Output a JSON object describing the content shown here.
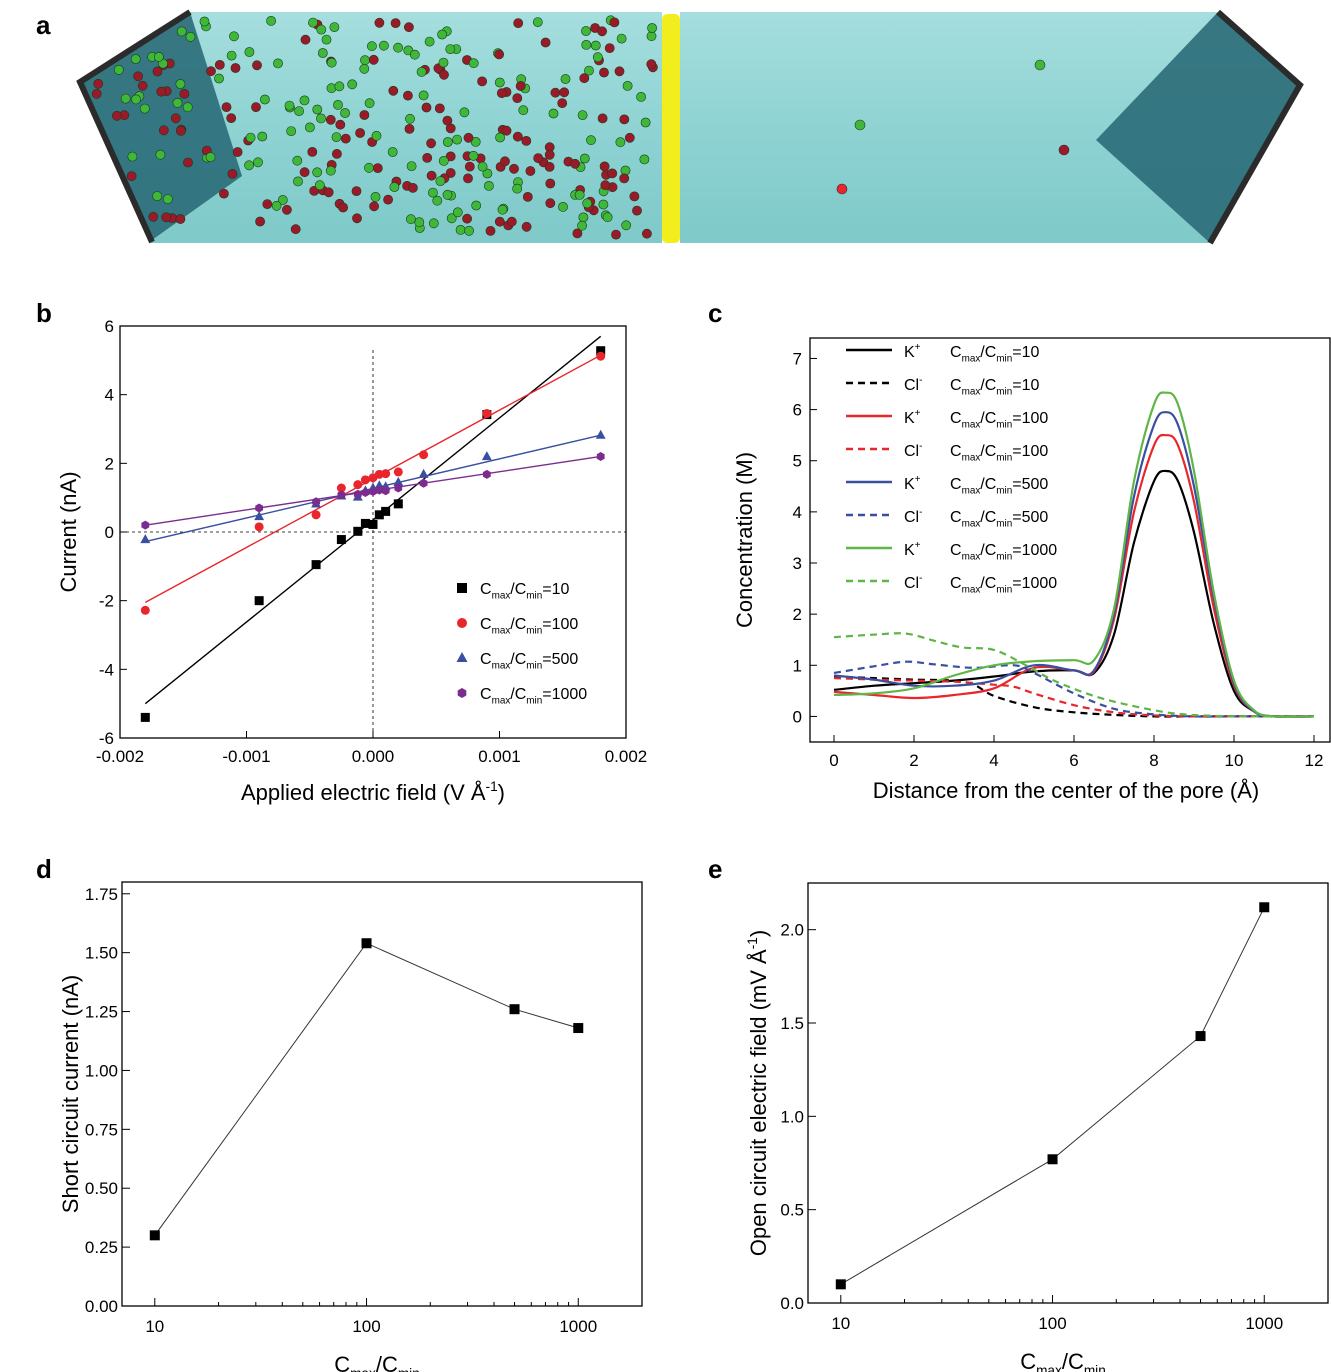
{
  "panels": {
    "a": {
      "label": "a"
    },
    "b": {
      "label": "b"
    },
    "c": {
      "label": "c"
    },
    "d": {
      "label": "d"
    },
    "e": {
      "label": "e"
    }
  },
  "colors": {
    "water": "#8fd3d3",
    "water_dark": "#2a6c78",
    "membrane": "#f2ee1d",
    "k_ion": "#3fb83a",
    "cl_ion": "#9b1a2a",
    "black": "#000000",
    "red": "#e8262b",
    "blue": "#3b4fa0",
    "purple": "#7b2c8e",
    "green": "#5fb546"
  },
  "chart_data": [
    {
      "panel": "b",
      "type": "scatter",
      "xlabel": "Applied electric field (V Å-1)",
      "ylabel": "Current (nA)",
      "xlim": [
        -0.002,
        0.002
      ],
      "ylim": [
        -6,
        6
      ],
      "xticks": [
        "-0.002",
        "-0.001",
        "0.000",
        "0.001",
        "0.002"
      ],
      "yticks": [
        "-6",
        "-4",
        "-2",
        "0",
        "2",
        "4",
        "6"
      ],
      "legend_position": "bottom-right",
      "series": [
        {
          "name": "Cmax/Cmin=10",
          "color": "#000000",
          "marker": "square",
          "x": [
            -0.0018,
            -0.0009,
            -0.00045,
            -0.00025,
            -0.00012,
            -6e-05,
            0.0,
            5e-05,
            0.0001,
            0.0002,
            0.0009,
            0.0018
          ],
          "y": [
            -5.4,
            -2.0,
            -0.95,
            -0.22,
            0.02,
            0.25,
            0.22,
            0.5,
            0.6,
            0.82,
            3.42,
            5.28
          ],
          "fit": [
            [
              -0.0018,
              -5.0
            ],
            [
              0.0018,
              5.7
            ]
          ]
        },
        {
          "name": "Cmax/Cmin=100",
          "color": "#e8262b",
          "marker": "circle",
          "x": [
            -0.0018,
            -0.0009,
            -0.00045,
            -0.00025,
            -0.00012,
            -6e-05,
            0.0,
            5e-05,
            0.0001,
            0.0002,
            0.0004,
            0.0009,
            0.0018
          ],
          "y": [
            -2.28,
            0.15,
            0.5,
            1.28,
            1.38,
            1.52,
            1.58,
            1.68,
            1.7,
            1.75,
            2.25,
            3.45,
            5.12
          ],
          "fit": [
            [
              -0.0018,
              -2.05
            ],
            [
              0.0018,
              5.15
            ]
          ]
        },
        {
          "name": "Cmax/Cmin=500",
          "color": "#3b4fa0",
          "marker": "triangle",
          "x": [
            -0.0018,
            -0.0009,
            -0.00045,
            -0.00025,
            -0.00012,
            -6e-05,
            0.0,
            5e-05,
            0.0001,
            0.0002,
            0.0004,
            0.0009,
            0.0018
          ],
          "y": [
            -0.22,
            0.45,
            0.82,
            1.05,
            1.02,
            1.2,
            1.28,
            1.35,
            1.32,
            1.45,
            1.68,
            2.2,
            2.82
          ],
          "fit": [
            [
              -0.0018,
              -0.28
            ],
            [
              0.0018,
              2.82
            ]
          ]
        },
        {
          "name": "Cmax/Cmin=1000",
          "color": "#7b2c8e",
          "marker": "hexagon",
          "x": [
            -0.0018,
            -0.0009,
            -0.00045,
            -0.00025,
            -0.00012,
            -6e-05,
            0.0,
            5e-05,
            0.0001,
            0.0002,
            0.0004,
            0.0009,
            0.0018
          ],
          "y": [
            0.2,
            0.7,
            0.88,
            1.08,
            1.1,
            1.15,
            1.18,
            1.22,
            1.2,
            1.28,
            1.42,
            1.68,
            2.2
          ],
          "fit": [
            [
              -0.0018,
              0.2
            ],
            [
              0.0018,
              2.2
            ]
          ]
        }
      ]
    },
    {
      "panel": "c",
      "type": "line",
      "xlabel": "Distance from the center of the pore (Å)",
      "ylabel": "Concentration (M)",
      "xlim": [
        -0.6,
        12.4
      ],
      "ylim": [
        -0.5,
        7.4
      ],
      "xticks": [
        "0",
        "2",
        "4",
        "6",
        "8",
        "10",
        "12"
      ],
      "yticks": [
        "0",
        "1",
        "2",
        "3",
        "4",
        "5",
        "6",
        "7"
      ],
      "legend_position": "top-left",
      "series": [
        {
          "ion": "K+",
          "ratio": "Cmax/Cmin=10",
          "color": "#000000",
          "style": "solid",
          "x": [
            0,
            1,
            2,
            3,
            4,
            5,
            6,
            6.5,
            7,
            7.5,
            8,
            8.3,
            8.6,
            9,
            9.5,
            10,
            10.5,
            11,
            12
          ],
          "y": [
            0.52,
            0.6,
            0.65,
            0.7,
            0.78,
            0.88,
            0.9,
            0.85,
            1.6,
            3.4,
            4.6,
            4.8,
            4.6,
            3.6,
            1.8,
            0.5,
            0.1,
            0.0,
            0.0
          ]
        },
        {
          "ion": "Cl-",
          "ratio": "Cmax/Cmin=10",
          "color": "#000000",
          "style": "dashed",
          "x": [
            0,
            1,
            2,
            3,
            3.5,
            4,
            5,
            6,
            7,
            8,
            9,
            10,
            12
          ],
          "y": [
            0.78,
            0.75,
            0.72,
            0.7,
            0.62,
            0.4,
            0.18,
            0.08,
            0.03,
            0.0,
            0.0,
            0.0,
            0.0
          ]
        },
        {
          "ion": "K+",
          "ratio": "Cmax/Cmin=100",
          "color": "#e8262b",
          "style": "solid",
          "x": [
            0,
            1,
            2,
            3,
            4,
            5,
            6,
            6.5,
            7,
            7.5,
            8,
            8.3,
            8.6,
            9,
            9.5,
            10,
            10.5,
            11,
            12
          ],
          "y": [
            0.48,
            0.42,
            0.36,
            0.42,
            0.55,
            0.95,
            0.9,
            0.88,
            1.9,
            4.0,
            5.3,
            5.5,
            5.3,
            4.2,
            2.1,
            0.6,
            0.1,
            0.0,
            0.0
          ]
        },
        {
          "ion": "Cl-",
          "ratio": "Cmax/Cmin=100",
          "color": "#e8262b",
          "style": "dashed",
          "x": [
            0,
            1,
            2,
            3,
            4,
            4.5,
            5,
            6,
            7,
            8,
            9,
            10,
            12
          ],
          "y": [
            0.75,
            0.72,
            0.7,
            0.68,
            0.62,
            0.58,
            0.45,
            0.22,
            0.08,
            0.02,
            0.0,
            0.0,
            0.0
          ]
        },
        {
          "ion": "K+",
          "ratio": "Cmax/Cmin=500",
          "color": "#3b4fa0",
          "style": "solid",
          "x": [
            0,
            1,
            2,
            3,
            4,
            5,
            6,
            6.5,
            7,
            7.5,
            8,
            8.3,
            8.6,
            9,
            9.5,
            10,
            10.5,
            11,
            12
          ],
          "y": [
            0.8,
            0.72,
            0.6,
            0.6,
            0.7,
            1.0,
            0.9,
            0.9,
            2.0,
            4.3,
            5.7,
            5.95,
            5.7,
            4.5,
            2.3,
            0.65,
            0.1,
            0.0,
            0.0
          ]
        },
        {
          "ion": "Cl-",
          "ratio": "Cmax/Cmin=500",
          "color": "#3b4fa0",
          "style": "dashed",
          "x": [
            0,
            1,
            1.8,
            2.5,
            3.5,
            4.5,
            5,
            6,
            7,
            8,
            9,
            10,
            12
          ],
          "y": [
            0.85,
            0.98,
            1.07,
            1.02,
            0.95,
            1.0,
            0.85,
            0.45,
            0.15,
            0.04,
            0.0,
            0.0,
            0.0
          ]
        },
        {
          "ion": "K+",
          "ratio": "Cmax/Cmin=1000",
          "color": "#5fb546",
          "style": "solid",
          "x": [
            0,
            1,
            2,
            3,
            4,
            5,
            6,
            6.5,
            7,
            7.5,
            8,
            8.3,
            8.6,
            9,
            9.5,
            10,
            10.5,
            11,
            12
          ],
          "y": [
            0.42,
            0.45,
            0.55,
            0.8,
            1.0,
            1.08,
            1.1,
            1.1,
            2.1,
            4.6,
            6.1,
            6.33,
            6.1,
            4.8,
            2.4,
            0.7,
            0.12,
            0.0,
            0.0
          ]
        },
        {
          "ion": "Cl-",
          "ratio": "Cmax/Cmin=1000",
          "color": "#5fb546",
          "style": "dashed",
          "x": [
            0,
            1,
            1.8,
            2.5,
            3.2,
            4,
            4.8,
            5.5,
            6.5,
            7.5,
            8.5,
            9.5,
            10.5,
            12
          ],
          "y": [
            1.55,
            1.6,
            1.62,
            1.48,
            1.35,
            1.3,
            1.0,
            0.7,
            0.4,
            0.2,
            0.06,
            0.01,
            0.0,
            0.0
          ]
        }
      ]
    },
    {
      "panel": "d",
      "type": "line",
      "xlabel": "Cmax/Cmin",
      "ylabel": "Short circuit current (nA)",
      "xscale": "log",
      "xlim": [
        7,
        2000
      ],
      "ylim": [
        0,
        1.8
      ],
      "xticks": [
        "10",
        "100",
        "1000"
      ],
      "yticks": [
        "0.00",
        "0.25",
        "0.50",
        "0.75",
        "1.00",
        "1.25",
        "1.50",
        "1.75"
      ],
      "series": [
        {
          "color": "#000000",
          "marker": "square",
          "x": [
            10,
            100,
            500,
            1000
          ],
          "y": [
            0.3,
            1.54,
            1.26,
            1.18
          ]
        }
      ]
    },
    {
      "panel": "e",
      "type": "line",
      "xlabel": "Cmax/Cmin",
      "ylabel": "Open circuit electric field (mV Å-1)",
      "xscale": "log",
      "xlim": [
        7,
        2000
      ],
      "ylim": [
        0,
        2.25
      ],
      "xticks": [
        "10",
        "100",
        "1000"
      ],
      "yticks": [
        "0.0",
        "0.5",
        "1.0",
        "1.5",
        "2.0"
      ],
      "series": [
        {
          "color": "#000000",
          "marker": "square",
          "x": [
            10,
            100,
            500,
            1000
          ],
          "y": [
            0.1,
            0.77,
            1.43,
            2.12
          ]
        }
      ]
    }
  ]
}
